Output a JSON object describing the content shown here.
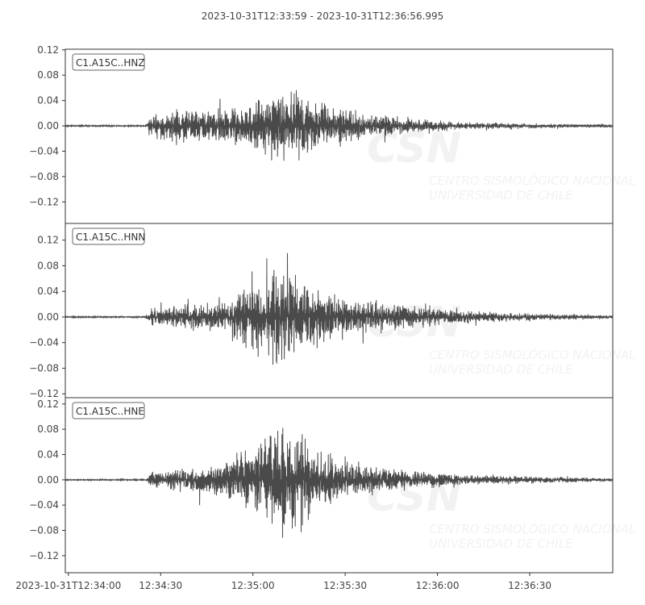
{
  "title": "2023-10-31T12:33:59  -  2023-10-31T12:36:56.995",
  "colors": {
    "trace": "#4a4a4a",
    "axes": "#333333",
    "watermark": "#f2f2f2"
  },
  "watermark": {
    "logo": "CSN",
    "line1": "CENTRO SISMOLÓGICO NACIONAL",
    "line2": "UNIVERSIDAD DE CHILE"
  },
  "chart_data": {
    "type": "line",
    "x_range": [
      "12:33:59",
      "12:36:56.995"
    ],
    "x_ticks": [
      "2023-10-31T12:34:00",
      "12:34:30",
      "12:35:00",
      "12:35:30",
      "12:36:00",
      "12:36:30"
    ],
    "x_tick_times": [
      "12:34:00",
      "12:34:30",
      "12:35:00",
      "12:35:30",
      "12:36:00",
      "12:36:30"
    ],
    "grid": false,
    "panels": [
      {
        "name": "C1.A15C..HNZ",
        "ylim": [
          -0.154,
          0.121
        ],
        "y_ticks": [
          "0.12",
          "0.08",
          "0.04",
          "0.00",
          "−0.04",
          "−0.08",
          "−0.12"
        ],
        "envelope": [
          [
            "12:33:59",
            0.001
          ],
          [
            "12:34:25",
            0.001
          ],
          [
            "12:34:27",
            0.02
          ],
          [
            "12:34:35",
            0.03
          ],
          [
            "12:34:57",
            0.032
          ],
          [
            "12:35:02",
            0.048
          ],
          [
            "12:35:12",
            0.075
          ],
          [
            "12:35:18",
            0.045
          ],
          [
            "12:35:30",
            0.028
          ],
          [
            "12:35:50",
            0.013
          ],
          [
            "12:36:10",
            0.006
          ],
          [
            "12:36:57",
            0.003
          ]
        ]
      },
      {
        "name": "C1.A15C..HNN",
        "ylim": [
          -0.126,
          0.146
        ],
        "y_ticks": [
          "0.12",
          "0.08",
          "0.04",
          "0.00",
          "−0.04",
          "−0.08",
          "−0.12"
        ],
        "envelope": [
          [
            "12:33:59",
            0.001
          ],
          [
            "12:34:25",
            0.001
          ],
          [
            "12:34:27",
            0.015
          ],
          [
            "12:34:50",
            0.03
          ],
          [
            "12:35:00",
            0.06
          ],
          [
            "12:35:10",
            0.09
          ],
          [
            "12:35:18",
            0.06
          ],
          [
            "12:35:30",
            0.035
          ],
          [
            "12:35:50",
            0.02
          ],
          [
            "12:36:10",
            0.01
          ],
          [
            "12:36:57",
            0.003
          ]
        ]
      },
      {
        "name": "C1.A15C..HNE",
        "ylim": [
          -0.147,
          0.13
        ],
        "y_ticks": [
          "0.12",
          "0.08",
          "0.04",
          "0.00",
          "−0.04",
          "−0.08",
          "−0.12"
        ],
        "envelope": [
          [
            "12:33:59",
            0.001
          ],
          [
            "12:34:25",
            0.001
          ],
          [
            "12:34:27",
            0.015
          ],
          [
            "12:34:50",
            0.03
          ],
          [
            "12:35:00",
            0.06
          ],
          [
            "12:35:10",
            0.1
          ],
          [
            "12:35:18",
            0.065
          ],
          [
            "12:35:30",
            0.035
          ],
          [
            "12:35:50",
            0.018
          ],
          [
            "12:36:10",
            0.009
          ],
          [
            "12:36:57",
            0.003
          ]
        ]
      }
    ]
  }
}
